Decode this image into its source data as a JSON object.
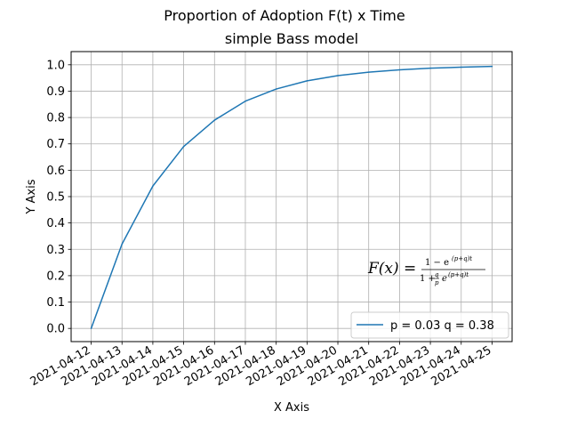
{
  "chart_data": {
    "type": "line",
    "title": "Proportion of Adoption F(t) x Time",
    "subtitle": "simple Bass model",
    "xlabel": "X Axis",
    "ylabel": "Y Axis",
    "x": [
      "2021-04-12",
      "2021-04-13",
      "2021-04-14",
      "2021-04-15",
      "2021-04-16",
      "2021-04-17",
      "2021-04-18",
      "2021-04-19",
      "2021-04-20",
      "2021-04-21",
      "2021-04-22",
      "2021-04-23",
      "2021-04-24",
      "2021-04-25"
    ],
    "series": [
      {
        "name": "p = 0.03 q = 0.38",
        "color": "#1f77b4",
        "values": [
          0.0,
          0.32,
          0.54,
          0.69,
          0.79,
          0.862,
          0.908,
          0.939,
          0.959,
          0.972,
          0.981,
          0.987,
          0.991,
          0.994
        ]
      }
    ],
    "ylim": [
      -0.05,
      1.05
    ],
    "yticks": [
      0.0,
      0.1,
      0.2,
      0.3,
      0.4,
      0.5,
      0.6,
      0.7,
      0.8,
      0.9,
      1.0
    ],
    "grid": true,
    "legend_position": "lower-right",
    "annotation": {
      "lhs": "F(x) =",
      "numerator": "1 − e",
      "numerator_exp": "(p+q)t",
      "denominator_pre": "1 +",
      "q": "q",
      "p": "p",
      "denominator_e": "e",
      "denominator_exp": "(p+q)t"
    }
  }
}
